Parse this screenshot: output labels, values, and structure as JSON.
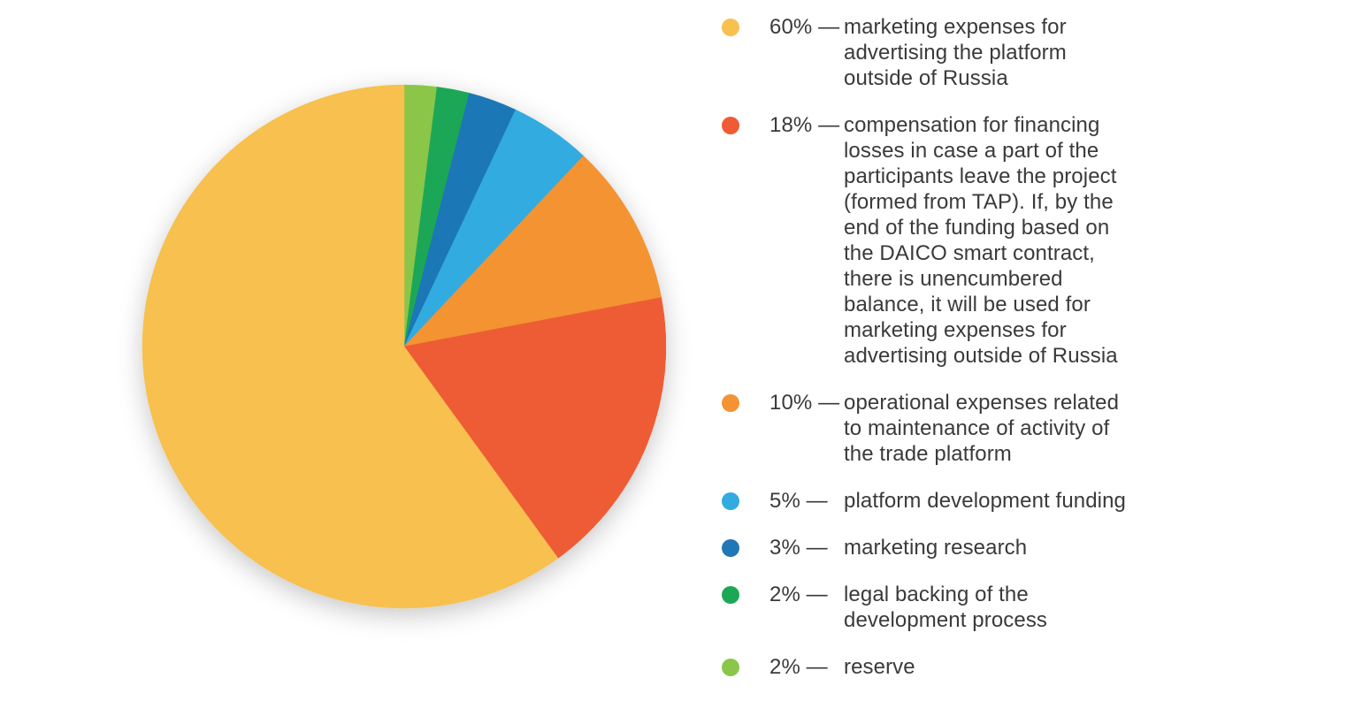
{
  "chart_data": {
    "type": "pie",
    "title": "",
    "start_angle_deg": 0,
    "direction": "counterclockwise",
    "slices": [
      {
        "pct_label": "60% —",
        "value": 60,
        "label": "marketing expenses for\nadvertising the platform\noutside of Russia",
        "color": "#F7C04F"
      },
      {
        "pct_label": "18% —",
        "value": 18,
        "label": "compensation for financing\nlosses in case a part of the\nparticipants leave the project\n(formed from TAP). If, by the\nend of the funding based on\nthe DAICO smart contract,\nthere is unencumbered\nbalance, it will be used for\nmarketing expenses for\nadvertising outside of Russia",
        "color": "#EE5B34"
      },
      {
        "pct_label": "10% —",
        "value": 10,
        "label": "operational expenses related\nto maintenance of activity of\nthe trade platform",
        "color": "#F39333"
      },
      {
        "pct_label": "5% —",
        "value": 5,
        "label": "platform development funding",
        "color": "#31ABE0"
      },
      {
        "pct_label": "3% —",
        "value": 3,
        "label": "marketing research",
        "color": "#1F77B6"
      },
      {
        "pct_label": "2% —",
        "value": 2,
        "label": "legal backing of the\ndevelopment process",
        "color": "#1CA756"
      },
      {
        "pct_label": "2% —",
        "value": 2,
        "label": "reserve",
        "color": "#8BC64A"
      }
    ],
    "legend_position": "right"
  }
}
